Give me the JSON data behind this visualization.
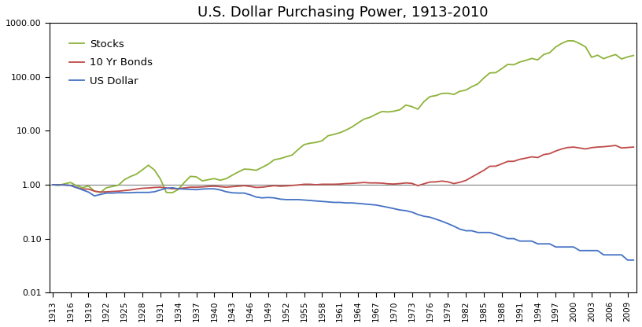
{
  "title": "U.S. Dollar Purchasing Power, 1913-2010",
  "years": [
    1913,
    1914,
    1915,
    1916,
    1917,
    1918,
    1919,
    1920,
    1921,
    1922,
    1923,
    1924,
    1925,
    1926,
    1927,
    1928,
    1929,
    1930,
    1931,
    1932,
    1933,
    1934,
    1935,
    1936,
    1937,
    1938,
    1939,
    1940,
    1941,
    1942,
    1943,
    1944,
    1945,
    1946,
    1947,
    1948,
    1949,
    1950,
    1951,
    1952,
    1953,
    1954,
    1955,
    1956,
    1957,
    1958,
    1959,
    1960,
    1961,
    1962,
    1963,
    1964,
    1965,
    1966,
    1967,
    1968,
    1969,
    1970,
    1971,
    1972,
    1973,
    1974,
    1975,
    1976,
    1977,
    1978,
    1979,
    1980,
    1981,
    1982,
    1983,
    1984,
    1985,
    1986,
    1987,
    1988,
    1989,
    1990,
    1991,
    1992,
    1993,
    1994,
    1995,
    1996,
    1997,
    1998,
    1999,
    2000,
    2001,
    2002,
    2003,
    2004,
    2005,
    2006,
    2007,
    2008,
    2009,
    2010
  ],
  "stocks": [
    1.0,
    0.97,
    1.04,
    1.1,
    0.96,
    0.88,
    0.95,
    0.76,
    0.72,
    0.88,
    0.93,
    0.98,
    1.24,
    1.42,
    1.57,
    1.89,
    2.3,
    1.88,
    1.28,
    0.72,
    0.71,
    0.82,
    1.1,
    1.43,
    1.4,
    1.18,
    1.24,
    1.3,
    1.21,
    1.3,
    1.5,
    1.72,
    1.95,
    1.92,
    1.85,
    2.1,
    2.4,
    2.9,
    3.05,
    3.3,
    3.55,
    4.5,
    5.55,
    5.9,
    6.1,
    6.55,
    8.1,
    8.6,
    9.25,
    10.3,
    11.8,
    14.0,
    16.5,
    17.8,
    20.3,
    22.8,
    22.4,
    23.1,
    24.6,
    30.1,
    28.05,
    25.2,
    34.8,
    43.1,
    45.0,
    49.4,
    49.8,
    47.3,
    54.1,
    56.9,
    65.9,
    74.2,
    95.4,
    118.5,
    120.0,
    142.4,
    170.8,
    168.1,
    188.8,
    202.4,
    220.0,
    207.2,
    260.0,
    282.0,
    359.4,
    418.9,
    467.4,
    466.8,
    416.2,
    359.9,
    231.0,
    253.0,
    218.0,
    240.0,
    260.0,
    215.0,
    235.0,
    250.0
  ],
  "bonds": [
    1.0,
    1.0,
    0.99,
    0.97,
    0.88,
    0.83,
    0.83,
    0.76,
    0.73,
    0.74,
    0.75,
    0.76,
    0.78,
    0.8,
    0.83,
    0.86,
    0.87,
    0.89,
    0.9,
    0.87,
    0.84,
    0.85,
    0.87,
    0.9,
    0.9,
    0.91,
    0.93,
    0.94,
    0.92,
    0.9,
    0.92,
    0.94,
    0.96,
    0.93,
    0.89,
    0.9,
    0.93,
    0.96,
    0.94,
    0.95,
    0.97,
    0.99,
    1.02,
    1.02,
    1.0,
    1.02,
    1.02,
    1.02,
    1.03,
    1.05,
    1.06,
    1.08,
    1.1,
    1.08,
    1.08,
    1.07,
    1.04,
    1.03,
    1.05,
    1.08,
    1.06,
    0.96,
    1.04,
    1.12,
    1.13,
    1.17,
    1.13,
    1.05,
    1.11,
    1.2,
    1.39,
    1.6,
    1.85,
    2.2,
    2.21,
    2.44,
    2.71,
    2.72,
    2.96,
    3.11,
    3.29,
    3.19,
    3.62,
    3.77,
    4.22,
    4.6,
    4.9,
    4.99,
    4.8,
    4.61,
    4.87,
    5.0,
    5.07,
    5.2,
    5.35,
    4.8,
    4.9,
    5.0
  ],
  "dollar": [
    1.0,
    0.99,
    0.99,
    0.97,
    0.89,
    0.8,
    0.73,
    0.62,
    0.66,
    0.7,
    0.7,
    0.71,
    0.71,
    0.71,
    0.72,
    0.72,
    0.72,
    0.74,
    0.8,
    0.86,
    0.88,
    0.84,
    0.83,
    0.82,
    0.81,
    0.83,
    0.84,
    0.84,
    0.8,
    0.74,
    0.71,
    0.7,
    0.7,
    0.65,
    0.59,
    0.57,
    0.58,
    0.57,
    0.54,
    0.53,
    0.53,
    0.53,
    0.52,
    0.51,
    0.5,
    0.49,
    0.48,
    0.47,
    0.47,
    0.46,
    0.46,
    0.45,
    0.44,
    0.43,
    0.42,
    0.4,
    0.38,
    0.36,
    0.34,
    0.33,
    0.31,
    0.28,
    0.26,
    0.25,
    0.23,
    0.21,
    0.19,
    0.17,
    0.15,
    0.14,
    0.14,
    0.13,
    0.13,
    0.13,
    0.12,
    0.11,
    0.1,
    0.1,
    0.09,
    0.09,
    0.09,
    0.08,
    0.08,
    0.08,
    0.07,
    0.07,
    0.07,
    0.07,
    0.06,
    0.06,
    0.06,
    0.06,
    0.05,
    0.05,
    0.05,
    0.05,
    0.04,
    0.04
  ],
  "stocks_color": "#8DB33A",
  "bonds_color": "#BE4B48",
  "dollar_color": "#4F6228",
  "dollar_line_color": "#4472C4",
  "reference_line_color": "#7F7F7F",
  "bg_color": "#FFFFFF",
  "plot_bg_color": "#FFFFFF",
  "ylim_min": 0.01,
  "ylim_max": 1000.0,
  "title_fontsize": 13
}
